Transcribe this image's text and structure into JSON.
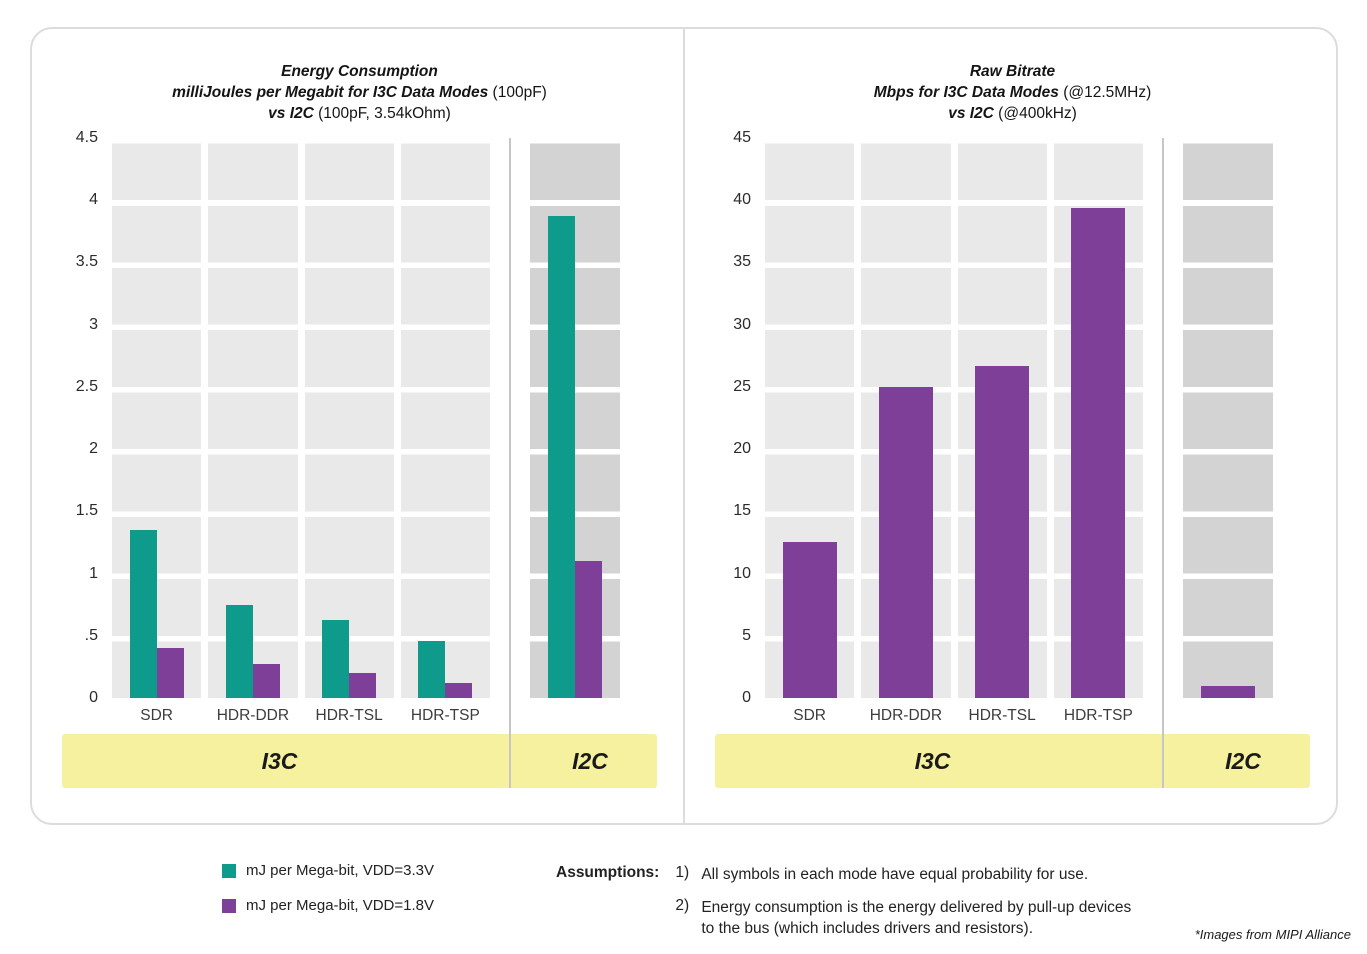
{
  "figure": {
    "footnote": "*Images from MIPI Alliance"
  },
  "legend": {
    "items": [
      {
        "swatch_color": "#0f9b8c",
        "label": "mJ per Mega-bit, VDD=3.3V"
      },
      {
        "swatch_color": "#7e3f98",
        "label": "mJ per Mega-bit, VDD=1.8V"
      }
    ]
  },
  "assumptions": {
    "heading": "Assumptions:",
    "items": [
      {
        "num": "1)",
        "text": "All symbols in each mode have equal probability for use."
      },
      {
        "num": "2)",
        "text": "Energy consumption is the energy delivered by pull-up devices to the bus (which includes drivers and resistors)."
      }
    ]
  },
  "chart_data": [
    {
      "type": "bar",
      "title_lines": [
        [
          {
            "text": "Energy Consumption",
            "bold": true
          }
        ],
        [
          {
            "text": "milliJoules per Megabit for I3C Data Modes",
            "bold": true
          },
          {
            "text": " (100pF)",
            "bold": false
          }
        ],
        [
          {
            "text": "vs I2C",
            "bold": true
          },
          {
            "text": " (100pF, 3.54kOhm)",
            "bold": false
          }
        ]
      ],
      "categories": [
        "SDR",
        "HDR-DDR",
        "HDR-TSL",
        "HDR-TSP",
        "I2C"
      ],
      "group_bands": [
        {
          "label": "I3C",
          "categories": [
            "SDR",
            "HDR-DDR",
            "HDR-TSL",
            "HDR-TSP"
          ]
        },
        {
          "label": "I2C",
          "categories": [
            "I2C"
          ]
        }
      ],
      "series": [
        {
          "name": "mJ per Mega-bit, VDD=3.3V",
          "color": "#0f9b8c",
          "values": [
            1.35,
            0.75,
            0.63,
            0.46,
            3.87
          ]
        },
        {
          "name": "mJ per Mega-bit, VDD=1.8V",
          "color": "#7e3f98",
          "values": [
            0.4,
            0.27,
            0.2,
            0.12,
            1.1
          ]
        }
      ],
      "ylim": [
        0,
        4.5
      ],
      "ytick_values": [
        0,
        0.5,
        1,
        1.5,
        2,
        2.5,
        3,
        3.5,
        4,
        4.5
      ],
      "ytick_labels": [
        "0",
        ".5",
        "1",
        "1.5",
        "2",
        "2.5",
        "3",
        "3.5",
        "4",
        "4.5"
      ],
      "grid": "banded-columns",
      "legend_position": "below-figure"
    },
    {
      "type": "bar",
      "title_lines": [
        [
          {
            "text": "Raw Bitrate",
            "bold": true
          }
        ],
        [
          {
            "text": "Mbps for I3C Data Modes",
            "bold": true
          },
          {
            "text": " (@12.5MHz)",
            "bold": false
          }
        ],
        [
          {
            "text": "vs I2C",
            "bold": true
          },
          {
            "text": " (@400kHz)",
            "bold": false
          }
        ]
      ],
      "categories": [
        "SDR",
        "HDR-DDR",
        "HDR-TSL",
        "HDR-TSP",
        "I2C"
      ],
      "group_bands": [
        {
          "label": "I3C",
          "categories": [
            "SDR",
            "HDR-DDR",
            "HDR-TSL",
            "HDR-TSP"
          ]
        },
        {
          "label": "I2C",
          "categories": [
            "I2C"
          ]
        }
      ],
      "series": [
        {
          "name": "Mbps",
          "color": "#7e3f98",
          "values": [
            12.5,
            25,
            26.7,
            39.4,
            1.0
          ]
        }
      ],
      "ylim": [
        0,
        45
      ],
      "ytick_values": [
        0,
        5,
        10,
        15,
        20,
        25,
        30,
        35,
        40,
        45
      ],
      "ytick_labels": [
        "0",
        "5",
        "10",
        "15",
        "20",
        "25",
        "30",
        "35",
        "40",
        "45"
      ],
      "grid": "banded-columns",
      "legend_position": "none"
    }
  ]
}
